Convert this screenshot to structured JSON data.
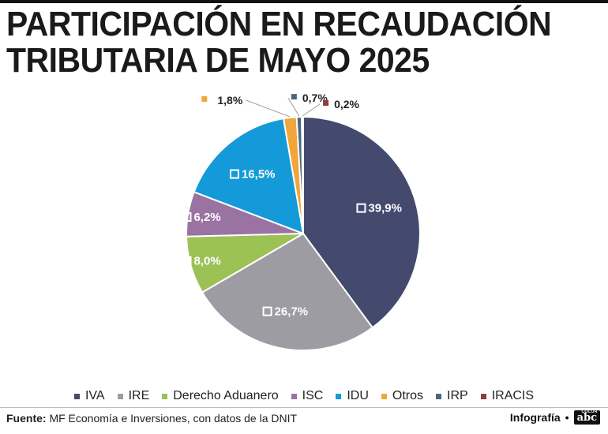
{
  "title_lines": [
    "PARTICIPACIÓN EN RECAUDACIÓN",
    "TRIBUTARIA DE MAYO 2025"
  ],
  "chart_data": {
    "type": "pie",
    "title": "PARTICIPACIÓN EN RECAUDACIÓN TRIBUTARIA DE MAYO 2025",
    "categories": [
      "IVA",
      "IRE",
      "Derecho Aduanero",
      "ISC",
      "IDU",
      "Otros",
      "IRP",
      "IRACIS"
    ],
    "values": [
      39.9,
      26.7,
      8.0,
      6.2,
      16.5,
      1.8,
      0.7,
      0.2
    ],
    "labels": [
      "39,9%",
      "26,7%",
      "8,0%",
      "6,2%",
      "16,5%",
      "1,8%",
      "0,7%",
      "0,2%"
    ],
    "colors": [
      "#444a6e",
      "#9d9ca3",
      "#9cc155",
      "#9b73a3",
      "#149ad8",
      "#f0a63a",
      "#4b6680",
      "#8c3e3a"
    ],
    "legend_position": "bottom",
    "start": "12 o'clock, clockwise"
  },
  "footer": {
    "source_label": "Fuente:",
    "source_text": " MF Economía e Inversiones, con datos de la DNIT",
    "credit": "Infografía",
    "logo_text": "abc",
    "logo_small": "COLOR"
  }
}
